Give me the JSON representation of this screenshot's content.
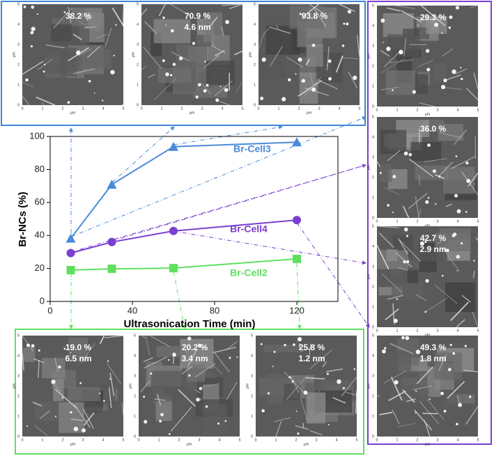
{
  "chart_data": {
    "type": "line",
    "x_label": "Ultrasonication Time (min)",
    "y_label": "Br-NCs (%)",
    "x": [
      10,
      30,
      60,
      120
    ],
    "series": [
      {
        "name": "Br-Cell3",
        "color": "#4a8ad8",
        "marker": "triangle",
        "values": [
          38.2,
          70.9,
          93.8,
          96.5
        ]
      },
      {
        "name": "Br-Cell4",
        "color": "#7a3fd0",
        "marker": "circle",
        "values": [
          29.3,
          36.0,
          42.7,
          49.3
        ]
      },
      {
        "name": "Br-Cell2",
        "color": "#5ee05e",
        "marker": "square",
        "values": [
          19.0,
          19.8,
          20.2,
          25.8
        ]
      }
    ],
    "xlim": [
      0,
      140
    ],
    "ylim": [
      0,
      100
    ],
    "xticks": [
      0,
      40,
      80,
      120
    ],
    "yticks": [
      0,
      20,
      40,
      60,
      80,
      100
    ]
  },
  "images": [
    {
      "lines": [
        "38.2 %"
      ]
    },
    {
      "lines": [
        "70.9 %",
        "4.6 nm"
      ]
    },
    {
      "lines": [
        "93.8 %"
      ]
    },
    {
      "lines": [
        "29.3 %"
      ]
    },
    {
      "lines": [
        "36.0 %"
      ]
    },
    {
      "lines": [
        "42.7 %",
        "2.9 nm"
      ]
    },
    {
      "lines": [
        "49.3 %",
        "1.8 nm"
      ]
    },
    {
      "lines": [
        "19.0 %",
        "6.5 nm"
      ]
    },
    {
      "lines": [
        "20.2 %",
        "3.4 nm"
      ]
    },
    {
      "lines": [
        "25.8 %",
        "1.2 nm"
      ]
    }
  ],
  "image_axis": {
    "ticks": [
      0,
      1,
      2,
      3,
      4,
      5
    ],
    "unit": "μm"
  }
}
